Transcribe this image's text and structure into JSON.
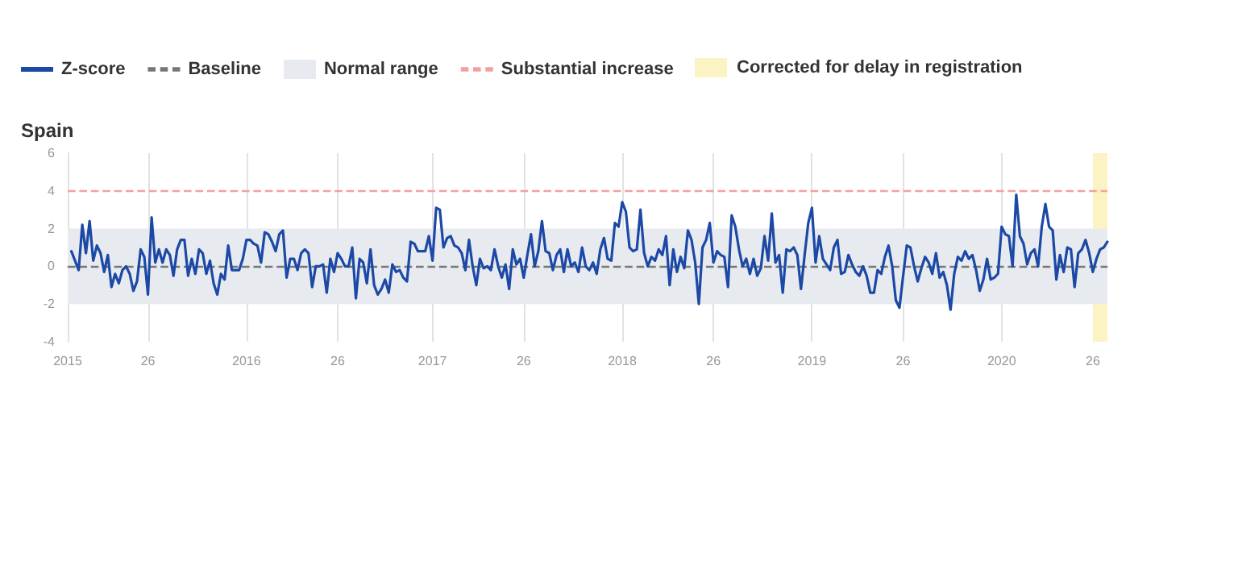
{
  "chart_data": {
    "type": "line",
    "title": "Spain",
    "categories": [
      "2015",
      null,
      null,
      null,
      null,
      null,
      null,
      null,
      null,
      null,
      null,
      null,
      null,
      null,
      null,
      null,
      null,
      null,
      null,
      null,
      null,
      null,
      "26",
      null,
      null,
      null,
      null,
      null,
      null,
      null,
      null,
      null,
      null,
      null,
      null,
      null,
      null,
      null,
      null,
      null,
      null,
      null,
      null,
      null,
      null,
      null,
      null,
      null,
      null,
      "2016",
      null,
      null,
      null,
      null,
      null,
      null,
      null,
      null,
      null,
      null,
      null,
      null,
      null,
      null,
      null,
      null,
      null,
      null,
      null,
      null,
      null,
      null,
      null,
      null,
      "26",
      null,
      null,
      null,
      null,
      null,
      null,
      null,
      null,
      null,
      null,
      null,
      null,
      null,
      null,
      null,
      null,
      null,
      null,
      null,
      null,
      null,
      null,
      null,
      null,
      null,
      "2017",
      null,
      null,
      null,
      null,
      null,
      null,
      null,
      null,
      null,
      null,
      null,
      null,
      null,
      null,
      null,
      null,
      null,
      null,
      null,
      null,
      null,
      null,
      null,
      null,
      "26",
      null,
      null,
      null,
      null,
      null,
      null,
      null,
      null,
      null,
      null,
      null,
      null,
      null,
      null,
      null,
      null,
      null,
      null,
      null,
      null,
      null,
      null,
      null,
      null,
      null,
      null,
      "2018",
      null,
      null,
      null,
      null,
      null,
      null,
      null,
      null,
      null,
      null,
      null,
      null,
      null,
      null,
      null,
      null,
      null,
      null,
      null,
      null,
      null,
      null,
      null,
      null,
      "26",
      null,
      null,
      null,
      null,
      null,
      null,
      null,
      null,
      null,
      null,
      null,
      null,
      null,
      null,
      null,
      null,
      null,
      null,
      null,
      null,
      null,
      null,
      null,
      null,
      null,
      null,
      "2019",
      null,
      null,
      null,
      null,
      null,
      null,
      null,
      null,
      null,
      null,
      null,
      null,
      null,
      null,
      null,
      null,
      null,
      null,
      null,
      null,
      null,
      null,
      null,
      null,
      "26",
      null,
      null,
      null,
      null,
      null,
      null,
      null,
      null,
      null,
      null,
      null,
      null,
      null,
      null,
      null,
      null,
      null,
      null,
      null,
      null,
      null,
      null,
      null,
      null,
      null,
      null,
      "2020",
      null,
      null,
      null,
      null,
      null,
      null,
      null,
      null,
      null,
      null,
      null,
      null,
      null,
      null,
      null,
      null,
      null,
      null,
      null,
      null,
      null,
      null,
      null,
      null,
      "26",
      null,
      null,
      null,
      null
    ],
    "series": [
      {
        "name": "Z-score",
        "color": "#1c48a6",
        "values": [
          null,
          0.8,
          0.3,
          -0.2,
          2.2,
          0.7,
          2.4,
          0.3,
          1.1,
          0.7,
          -0.3,
          0.6,
          -1.1,
          -0.4,
          -0.9,
          -0.2,
          0,
          -0.4,
          -1.3,
          -0.8,
          0.9,
          0.5,
          -1.5,
          2.6,
          0.2,
          0.9,
          0.2,
          0.9,
          0.6,
          -0.5,
          0.9,
          1.4,
          1.4,
          -0.5,
          0.4,
          -0.4,
          0.9,
          0.7,
          -0.4,
          0.3,
          -0.9,
          -1.5,
          -0.4,
          -0.7,
          1.1,
          -0.2,
          -0.2,
          -0.2,
          0.4,
          1.4,
          1.4,
          1.2,
          1.1,
          0.2,
          1.8,
          1.7,
          1.3,
          0.8,
          1.7,
          1.9,
          -0.6,
          0.4,
          0.4,
          -0.2,
          0.7,
          0.9,
          0.7,
          -1.1,
          0,
          0,
          0.1,
          -1.4,
          0.4,
          -0.3,
          0.7,
          0.4,
          0,
          0,
          1.0,
          -1.7,
          0.4,
          0.2,
          -0.9,
          0.9,
          -1.0,
          -1.5,
          -1.2,
          -0.7,
          -1.4,
          0.1,
          -0.3,
          -0.2,
          -0.6,
          -0.8,
          1.3,
          1.2,
          0.8,
          0.8,
          0.8,
          1.6,
          0.3,
          3.1,
          3.0,
          1.0,
          1.5,
          1.6,
          1.1,
          1.0,
          0.7,
          -0.2,
          1.4,
          0,
          -1.0,
          0.4,
          -0.1,
          0,
          -0.2,
          0.9,
          0,
          -0.6,
          0.1,
          -1.2,
          0.9,
          0.1,
          0.4,
          -0.6,
          0.6,
          1.7,
          0,
          0.8,
          2.4,
          0.8,
          0.7,
          -0.2,
          0.6,
          0.9,
          -0.3,
          0.9,
          0,
          0.2,
          -0.3,
          1.0,
          0,
          -0.2,
          0.2,
          -0.4,
          0.9,
          1.5,
          0.4,
          0.3,
          2.3,
          2.1,
          3.4,
          2.9,
          1.0,
          0.8,
          0.9,
          3.0,
          0.7,
          0,
          0.5,
          0.3,
          0.9,
          0.6,
          1.6,
          -1.0,
          0.9,
          -0.3,
          0.5,
          -0.1,
          1.9,
          1.4,
          0.2,
          -2.0,
          1.0,
          1.4,
          2.3,
          0.2,
          0.8,
          0.6,
          0.5,
          -1.1,
          2.7,
          2.1,
          0.9,
          0,
          0.4,
          -0.4,
          0.4,
          -0.5,
          -0.1,
          1.6,
          0.3,
          2.8,
          0.2,
          0.6,
          -1.4,
          0.9,
          0.8,
          1.0,
          0.6,
          -1.2,
          0.6,
          2.3,
          3.1,
          0.2,
          1.6,
          0.4,
          0.1,
          -0.2,
          1.0,
          1.4,
          -0.4,
          -0.3,
          0.6,
          0.1,
          -0.3,
          -0.5,
          0,
          -0.5,
          -1.4,
          -1.4,
          -0.2,
          -0.4,
          0.5,
          1.1,
          0,
          -1.8,
          -2.2,
          -0.5,
          1.1,
          1.0,
          0,
          -0.8,
          -0.1,
          0.5,
          0.2,
          -0.4,
          0.7,
          -0.6,
          -0.3,
          -1.0,
          -2.3,
          -0.4,
          0.5,
          0.3,
          0.8,
          0.4,
          0.6,
          -0.2,
          -1.3,
          -0.7,
          0.4,
          -0.7,
          -0.6,
          -0.4,
          2.1,
          1.7,
          1.6,
          0,
          3.8,
          1.6,
          1.2,
          0.1,
          0.7,
          0.9,
          0,
          2.1,
          3.3,
          2.1,
          1.9,
          -0.7,
          0.6,
          -0.3,
          1.0,
          0.9,
          -1.1,
          0.7,
          0.9,
          1.4,
          0.7,
          -0.3,
          0.4,
          0.9,
          1.0,
          1.3
        ]
      }
    ],
    "ylim": [
      -4,
      6
    ],
    "yticks": [
      -4,
      -2,
      0,
      2,
      4,
      6
    ],
    "grid": "x",
    "legend": "top left",
    "marker": "none",
    "line_style": "solid",
    "ref_lines": [
      {
        "axis": "y",
        "value": 0,
        "label": "Baseline",
        "color": "#777777",
        "line_style": "dashed"
      },
      {
        "axis": "y",
        "value": 4,
        "label": "Substantial increase",
        "color": "#f4a0a0",
        "line_style": "dashed"
      }
    ],
    "bands": [
      {
        "axis": "y",
        "from": -2,
        "to": 2,
        "label": "Normal range",
        "color": "#e7ebf0"
      }
    ],
    "annotations": [
      "Corrected for delay in registration"
    ]
  }
}
